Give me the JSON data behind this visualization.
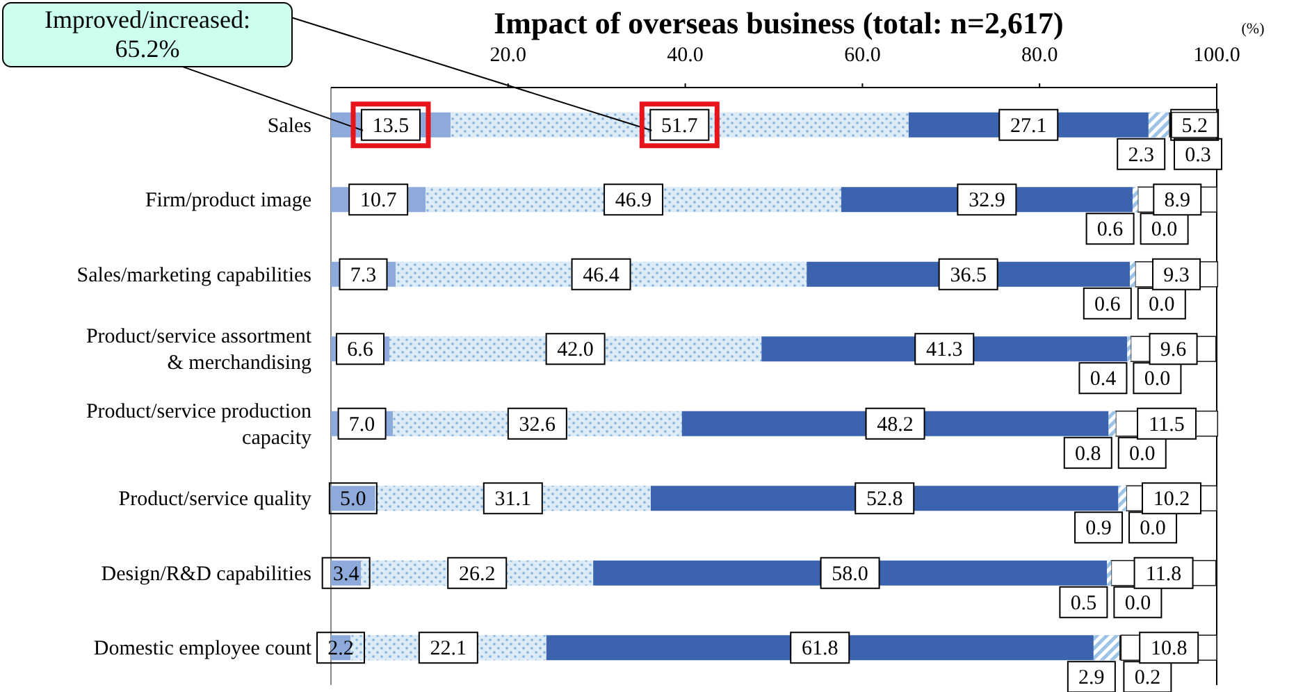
{
  "chart_data": {
    "type": "bar",
    "orientation": "horizontal",
    "stacked": true,
    "title": "Impact of overseas business (total: n=2,617)",
    "xlabel": "(%)",
    "categories": [
      "Sales",
      "Firm/product image",
      "Sales/marketing capabilities",
      "Product/service assortment\n& merchandising",
      "Product/service production\ncapacity",
      "Product/service quality",
      "Design/R&D capabilities",
      "Domestic employee count"
    ],
    "series": [
      {
        "color": "#8eaadb",
        "values": [
          13.5,
          10.7,
          7.3,
          6.6,
          7.0,
          5.0,
          3.4,
          2.2
        ],
        "value_labels": [
          "13.5",
          "10.7",
          "7.3",
          "6.6",
          "7.0",
          "5.0",
          "3.4",
          "2.2"
        ]
      },
      {
        "color": "#ddebf7",
        "values": [
          51.7,
          46.9,
          46.4,
          42.0,
          32.6,
          31.1,
          26.2,
          22.1
        ],
        "value_labels": [
          "51.7",
          "46.9",
          "46.4",
          "42.0",
          "32.6",
          "31.1",
          "26.2",
          "22.1"
        ]
      },
      {
        "color": "#3c63ad",
        "values": [
          27.1,
          32.9,
          36.5,
          41.3,
          48.2,
          52.8,
          58.0,
          61.8
        ],
        "value_labels": [
          "27.1",
          "32.9",
          "36.5",
          "41.3",
          "48.2",
          "52.8",
          "58.0",
          "61.8"
        ]
      },
      {
        "color": "#9dc3e6",
        "values": [
          2.3,
          0.6,
          0.6,
          0.4,
          0.8,
          0.9,
          0.5,
          2.9
        ],
        "value_labels": [
          "2.3",
          "0.6",
          "0.6",
          "0.4",
          "0.8",
          "0.9",
          "0.5",
          "2.9"
        ]
      },
      {
        "color": "#1a1a1a",
        "values": [
          0.3,
          0.0,
          0.0,
          0.0,
          0.0,
          0.0,
          0.0,
          0.2
        ],
        "value_labels": [
          "0.3",
          "0.0",
          "0.0",
          "0.0",
          "0.0",
          "0.0",
          "0.0",
          "0.2"
        ]
      },
      {
        "color": "#ffffff",
        "values": [
          5.2,
          8.9,
          9.3,
          9.6,
          11.5,
          10.2,
          11.8,
          10.8
        ],
        "value_labels": [
          "5.2",
          "8.9",
          "9.3",
          "9.6",
          "11.5",
          "10.2",
          "11.8",
          "10.8"
        ]
      }
    ],
    "xlim": [
      0,
      100
    ],
    "xticks": [
      {
        "value": 20,
        "label": "20.0"
      },
      {
        "value": 40,
        "label": "40.0"
      },
      {
        "value": 60,
        "label": "60.0"
      },
      {
        "value": 80,
        "label": "80.0"
      },
      {
        "value": 100,
        "label": "100.0"
      }
    ],
    "annotations": [
      "Improved/increased: 65.2%"
    ]
  }
}
